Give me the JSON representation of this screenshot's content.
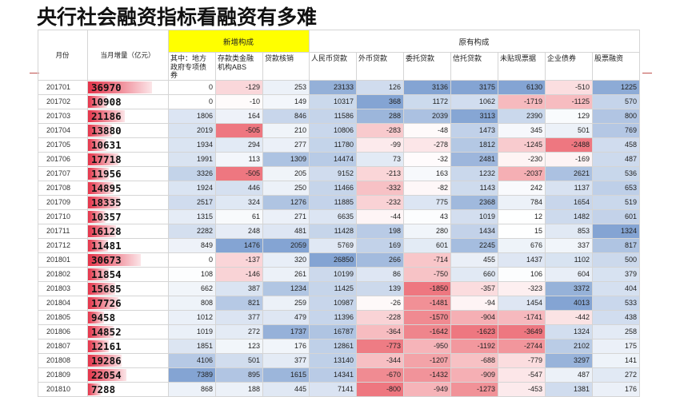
{
  "title": "央行社会融资指标看融资有多难",
  "colors": {
    "header_highlight": "#ffff00",
    "positive_scale": "#5b86c4",
    "negative_scale": "#e84a55",
    "total_bar": "#e3283f",
    "accent_line": "#c0504d"
  },
  "header": {
    "month": "月份",
    "total": "当月增量（亿元）",
    "group_new": "新增构成",
    "group_old": "原有构成",
    "columns": [
      "其中：地方政府专项债券",
      "存款类金融机构ABS",
      "贷款核销",
      "人民币贷款",
      "外币贷款",
      "委托贷款",
      "信托贷款",
      "未贴现票据",
      "企业债券",
      "股票融资"
    ]
  },
  "rows": [
    {
      "month": "201701",
      "total": "36970",
      "total_value": 36970,
      "values": [
        "0",
        "-129",
        "253",
        "23133",
        "126",
        "3136",
        "3175",
        "6130",
        "-510",
        "1225"
      ]
    },
    {
      "month": "201702",
      "total": "10908",
      "total_value": 10908,
      "values": [
        "0",
        "-10",
        "149",
        "10317",
        "368",
        "1172",
        "1062",
        "-1719",
        "-1125",
        "570"
      ]
    },
    {
      "month": "201703",
      "total": "21186",
      "total_value": 21186,
      "values": [
        "1806",
        "164",
        "846",
        "11586",
        "288",
        "2039",
        "3113",
        "2390",
        "129",
        "800"
      ]
    },
    {
      "month": "201704",
      "total": "13880",
      "total_value": 13880,
      "values": [
        "2019",
        "-505",
        "210",
        "10806",
        "-283",
        "-48",
        "1473",
        "345",
        "501",
        "769"
      ]
    },
    {
      "month": "201705",
      "total": "10631",
      "total_value": 10631,
      "values": [
        "1934",
        "294",
        "277",
        "11780",
        "-99",
        "-278",
        "1812",
        "-1245",
        "-2488",
        "458"
      ]
    },
    {
      "month": "201706",
      "total": "17718",
      "total_value": 17718,
      "values": [
        "1991",
        "113",
        "1309",
        "14474",
        "73",
        "-32",
        "2481",
        "-230",
        "-169",
        "487"
      ]
    },
    {
      "month": "201707",
      "total": "11956",
      "total_value": 11956,
      "values": [
        "3326",
        "-505",
        "205",
        "9152",
        "-213",
        "163",
        "1232",
        "-2037",
        "2621",
        "536"
      ]
    },
    {
      "month": "201708",
      "total": "14895",
      "total_value": 14895,
      "values": [
        "1924",
        "446",
        "250",
        "11466",
        "-332",
        "-82",
        "1143",
        "242",
        "1137",
        "653"
      ]
    },
    {
      "month": "201709",
      "total": "18335",
      "total_value": 18335,
      "values": [
        "2517",
        "324",
        "1276",
        "11885",
        "-232",
        "775",
        "2368",
        "784",
        "1654",
        "519"
      ]
    },
    {
      "month": "201710",
      "total": "10357",
      "total_value": 10357,
      "values": [
        "1315",
        "61",
        "271",
        "6635",
        "-44",
        "43",
        "1019",
        "12",
        "1482",
        "601"
      ]
    },
    {
      "month": "201711",
      "total": "16128",
      "total_value": 16128,
      "values": [
        "2282",
        "248",
        "481",
        "11428",
        "198",
        "280",
        "1434",
        "15",
        "853",
        "1324"
      ]
    },
    {
      "month": "201712",
      "total": "11481",
      "total_value": 11481,
      "values": [
        "849",
        "1476",
        "2059",
        "5769",
        "169",
        "601",
        "2245",
        "676",
        "337",
        "817"
      ]
    },
    {
      "month": "201801",
      "total": "30673",
      "total_value": 30673,
      "values": [
        "0",
        "-137",
        "320",
        "26850",
        "266",
        "-714",
        "455",
        "1437",
        "1102",
        "500"
      ]
    },
    {
      "month": "201802",
      "total": "11854",
      "total_value": 11854,
      "values": [
        "108",
        "-146",
        "261",
        "10199",
        "86",
        "-750",
        "660",
        "106",
        "604",
        "379"
      ]
    },
    {
      "month": "201803",
      "total": "15685",
      "total_value": 15685,
      "values": [
        "662",
        "387",
        "1234",
        "11425",
        "139",
        "-1850",
        "-357",
        "-323",
        "3372",
        "404"
      ]
    },
    {
      "month": "201804",
      "total": "17726",
      "total_value": 17726,
      "values": [
        "808",
        "821",
        "259",
        "10987",
        "-26",
        "-1481",
        "-94",
        "1454",
        "4013",
        "533"
      ]
    },
    {
      "month": "201805",
      "total": "9458",
      "total_value": 9458,
      "values": [
        "1012",
        "377",
        "479",
        "11396",
        "-228",
        "-1570",
        "-904",
        "-1741",
        "-442",
        "438"
      ]
    },
    {
      "month": "201806",
      "total": "14852",
      "total_value": 14852,
      "values": [
        "1019",
        "272",
        "1737",
        "16787",
        "-364",
        "-1642",
        "-1623",
        "-3649",
        "1324",
        "258"
      ]
    },
    {
      "month": "201807",
      "total": "12161",
      "total_value": 12161,
      "values": [
        "1851",
        "123",
        "176",
        "12861",
        "-773",
        "-950",
        "-1192",
        "-2744",
        "2102",
        "175"
      ]
    },
    {
      "month": "201808",
      "total": "19286",
      "total_value": 19286,
      "values": [
        "4106",
        "501",
        "377",
        "13140",
        "-344",
        "-1207",
        "-688",
        "-779",
        "3297",
        "141"
      ]
    },
    {
      "month": "201809",
      "total": "22054",
      "total_value": 22054,
      "values": [
        "7389",
        "895",
        "1615",
        "14341",
        "-670",
        "-1432",
        "-909",
        "-547",
        "487",
        "272"
      ]
    },
    {
      "month": "201810",
      "total": "7288",
      "total_value": 7288,
      "values": [
        "868",
        "188",
        "445",
        "7141",
        "-800",
        "-949",
        "-1273",
        "-453",
        "1381",
        "176"
      ]
    }
  ]
}
